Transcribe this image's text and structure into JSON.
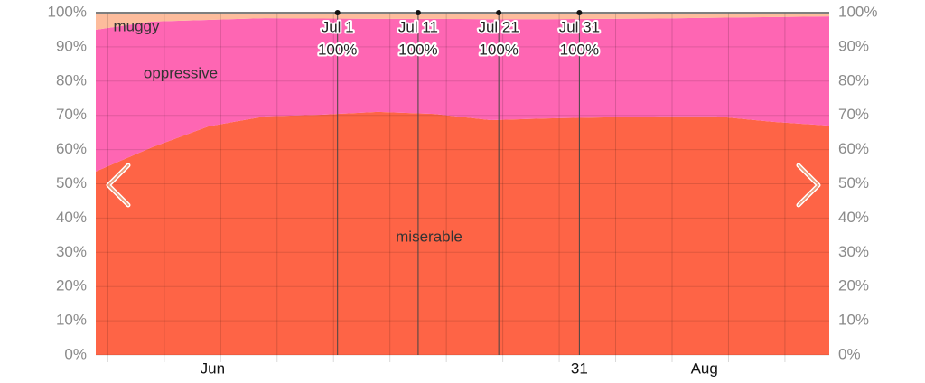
{
  "chart_data": {
    "type": "stacked_area",
    "x": [
      0,
      7,
      14,
      21,
      28,
      35,
      42,
      49,
      56,
      63,
      70,
      77,
      84,
      91
    ],
    "xlim": [
      0,
      91
    ],
    "xticks": [
      {
        "value": 14.5,
        "label": "Jun"
      },
      {
        "value": 60,
        "label": "31"
      },
      {
        "value": 75.5,
        "label": "Aug"
      }
    ],
    "xminorticks": [
      1.5,
      8.5,
      15.5,
      22.5,
      29.5,
      36.5,
      43.5,
      50.5,
      57.5,
      64.5,
      71.5,
      78.5,
      85.5
    ],
    "series": [
      {
        "name": "miserable",
        "color": "#fe6446",
        "values": [
          53.6,
          60.7,
          66.8,
          69.7,
          70.2,
          71.0,
          70.4,
          68.6,
          69.1,
          69.4,
          69.7,
          69.7,
          68.1,
          67.0
        ]
      },
      {
        "name": "oppressive",
        "color": "#fe66b3",
        "values": [
          41.4,
          36.7,
          31.1,
          28.7,
          28.1,
          27.2,
          27.8,
          29.5,
          29.0,
          28.8,
          28.6,
          28.8,
          30.6,
          31.9
        ]
      },
      {
        "name": "muggy",
        "color": "#fdbc9c",
        "values": [
          4.6,
          2.2,
          1.7,
          1.2,
          1.3,
          1.4,
          1.4,
          1.5,
          1.5,
          1.4,
          1.3,
          1.1,
          0.9,
          0.7
        ]
      }
    ],
    "ylim": [
      0,
      100
    ],
    "yticks": [
      {
        "value": 0,
        "label": "0%"
      },
      {
        "value": 10,
        "label": "10%"
      },
      {
        "value": 20,
        "label": "20%"
      },
      {
        "value": 30,
        "label": "30%"
      },
      {
        "value": 40,
        "label": "40%"
      },
      {
        "value": 50,
        "label": "50%"
      },
      {
        "value": 60,
        "label": "60%"
      },
      {
        "value": 70,
        "label": "70%"
      },
      {
        "value": 80,
        "label": "80%"
      },
      {
        "value": 90,
        "label": "90%"
      },
      {
        "value": 100,
        "label": "100%"
      }
    ],
    "y2lim": [
      0,
      100
    ],
    "y2ticks": [
      {
        "value": 0,
        "label": "0%"
      },
      {
        "value": 10,
        "label": "10%"
      },
      {
        "value": 20,
        "label": "20%"
      },
      {
        "value": 30,
        "label": "30%"
      },
      {
        "value": 40,
        "label": "40%"
      },
      {
        "value": 50,
        "label": "50%"
      },
      {
        "value": 60,
        "label": "60%"
      },
      {
        "value": 70,
        "label": "70%"
      },
      {
        "value": 80,
        "label": "80%"
      },
      {
        "value": 90,
        "label": "90%"
      },
      {
        "value": 100,
        "label": "100%"
      }
    ],
    "grid": true,
    "annotations": [
      {
        "x": 30,
        "label": "Jul 1",
        "value": 100,
        "value_label": "100%"
      },
      {
        "x": 40,
        "label": "Jul 11",
        "value": 100,
        "value_label": "100%"
      },
      {
        "x": 50,
        "label": "Jul 21",
        "value": 100,
        "value_label": "100%"
      },
      {
        "x": 60,
        "label": "Jul 31",
        "value": 100,
        "value_label": "100%"
      }
    ]
  }
}
